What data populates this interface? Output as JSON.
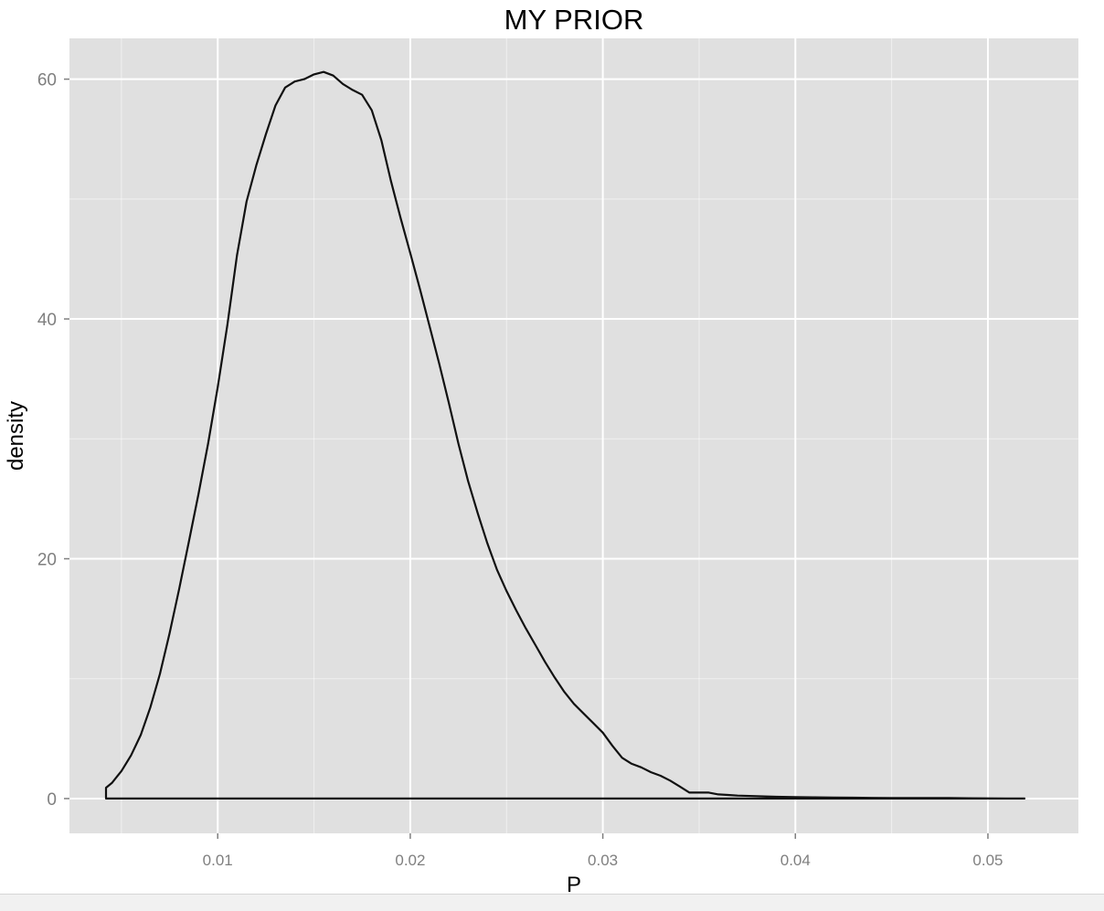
{
  "chart_data": {
    "type": "line",
    "title": "MY PRIOR",
    "xlabel": "P",
    "ylabel": "density",
    "xlim": [
      0.0023,
      0.0547
    ],
    "ylim": [
      -2.9,
      63.4
    ],
    "x_ticks": [
      0.01,
      0.02,
      0.03,
      0.04,
      0.05
    ],
    "x_tick_labels": [
      "0.01",
      "0.02",
      "0.03",
      "0.04",
      "0.05"
    ],
    "x_minor_ticks": [
      0.005,
      0.015,
      0.025,
      0.035,
      0.045
    ],
    "y_ticks": [
      0,
      20,
      40,
      60
    ],
    "y_tick_labels": [
      "0",
      "20",
      "40",
      "60"
    ],
    "y_minor_ticks": [
      10,
      30,
      50
    ],
    "grid": true,
    "legend": "none",
    "colors": {
      "panel": "#e0e0e0",
      "grid": "#ffffff",
      "line": "#111111",
      "tick_text": "#7f7f7f",
      "title_text": "#000000"
    },
    "series": [
      {
        "x": [
          0.0042,
          0.0045,
          0.005,
          0.0055,
          0.006,
          0.0065,
          0.007,
          0.0075,
          0.008,
          0.0085,
          0.009,
          0.0095,
          0.01,
          0.0105,
          0.011,
          0.0115,
          0.012,
          0.0125,
          0.013,
          0.0135,
          0.014,
          0.0145,
          0.015,
          0.0155,
          0.016,
          0.0165,
          0.017,
          0.0175,
          0.018,
          0.0185,
          0.019,
          0.0195,
          0.02,
          0.0205,
          0.021,
          0.0215,
          0.022,
          0.0225,
          0.023,
          0.0235,
          0.024,
          0.0245,
          0.025,
          0.0255,
          0.026,
          0.0265,
          0.027,
          0.0275,
          0.028,
          0.0285,
          0.029,
          0.0295,
          0.03,
          0.0305,
          0.031,
          0.0315,
          0.032,
          0.0325,
          0.033,
          0.0335,
          0.034,
          0.0345,
          0.035,
          0.0355,
          0.036,
          0.0365,
          0.037,
          0.038,
          0.039,
          0.04,
          0.041,
          0.042,
          0.043,
          0.044,
          0.045,
          0.046,
          0.047,
          0.048,
          0.049,
          0.05,
          0.051,
          0.0519
        ],
        "y": [
          0.9,
          1.3,
          2.3,
          3.6,
          5.3,
          7.6,
          10.4,
          13.8,
          17.5,
          21.4,
          25.4,
          29.6,
          34.3,
          39.5,
          45.3,
          49.8,
          52.8,
          55.4,
          57.8,
          59.3,
          59.8,
          60.0,
          60.4,
          60.6,
          60.3,
          59.6,
          59.1,
          58.7,
          57.4,
          54.9,
          51.5,
          48.4,
          45.5,
          42.5,
          39.4,
          36.3,
          33.0,
          29.6,
          26.5,
          23.8,
          21.3,
          19.1,
          17.3,
          15.7,
          14.2,
          12.8,
          11.4,
          10.1,
          8.9,
          7.9,
          7.1,
          6.3,
          5.5,
          4.4,
          3.4,
          2.9,
          2.6,
          2.2,
          1.9,
          1.5,
          1.0,
          0.5,
          0.5,
          0.5,
          0.35,
          0.3,
          0.25,
          0.2,
          0.15,
          0.12,
          0.1,
          0.09,
          0.07,
          0.06,
          0.05,
          0.05,
          0.04,
          0.04,
          0.03,
          0.02,
          0.01,
          0.0
        ]
      }
    ]
  }
}
